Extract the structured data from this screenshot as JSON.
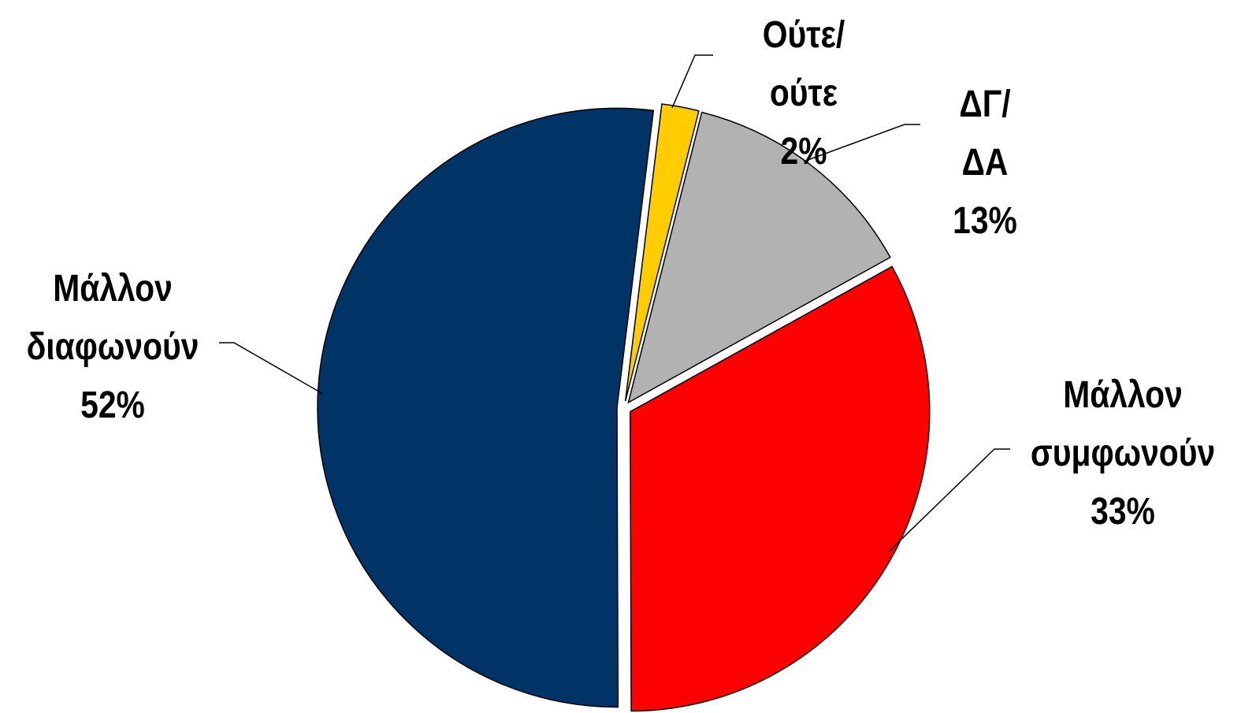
{
  "chart_data": {
    "type": "pie",
    "categories": [
      "Ούτε/ούτε",
      "ΔΓ/ΔΑ",
      "Μάλλον συμφωνούν",
      "Μάλλον διαφωνούν"
    ],
    "values": [
      2,
      13,
      33,
      52
    ],
    "value_labels": [
      "2%",
      "13%",
      "33%",
      "52%"
    ],
    "colors": [
      "#ffcc00",
      "#b2b2b2",
      "#ff0000",
      "#003366"
    ]
  }
}
